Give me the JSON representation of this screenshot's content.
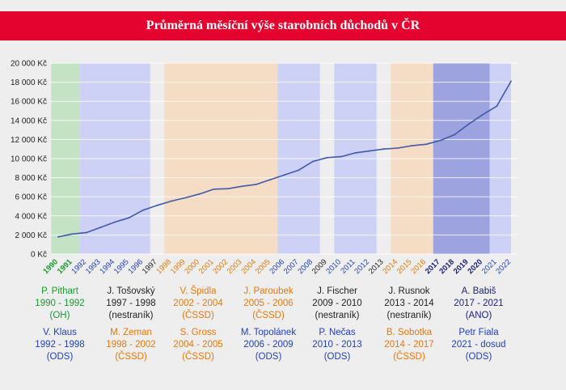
{
  "title": "Průměrná měsíční výše starobních důchodů v ČR",
  "colors": {
    "title_bg": "#e4032e",
    "line": "#3e5aa8",
    "green": "#1a9a2c",
    "black": "#222222",
    "blue": "#1f3fbf",
    "orange": "#e8780e",
    "navy": "#1b1f7a",
    "band_green": "#c4e3c4",
    "band_blue": "#cdd1f5",
    "band_orange": "#f5dcc4",
    "band_navy": "#9da3de"
  },
  "chart_data": {
    "type": "line",
    "title": "Průměrná měsíční výše starobních důchodů v ČR",
    "x": [
      1990,
      1991,
      1992,
      1993,
      1994,
      1995,
      1996,
      1997,
      1998,
      1999,
      2000,
      2001,
      2002,
      2003,
      2004,
      2005,
      2006,
      2007,
      2008,
      2009,
      2010,
      2011,
      2012,
      2013,
      2014,
      2015,
      2016,
      2017,
      2018,
      2019,
      2020,
      2021,
      2022
    ],
    "series": [
      {
        "values": [
          1800,
          2100,
          2250,
          2800,
          3350,
          3800,
          4600,
          5100,
          5550,
          5900,
          6300,
          6800,
          6850,
          7100,
          7300,
          7800,
          8300,
          8800,
          9700,
          10100,
          10200,
          10600,
          10800,
          11000,
          11100,
          11350,
          11500,
          11900,
          12500,
          13600,
          14600,
          15500,
          18100
        ]
      }
    ],
    "yticks": [
      "0 Kč",
      "2 000 Kč",
      "4 000 Kč",
      "6 000 Kč",
      "8 000 Kč",
      "10 000 Kč",
      "12 000 Kč",
      "14 000 Kč",
      "16 000 Kč",
      "18 000 Kč",
      "20 000 Kč"
    ],
    "ylim": [
      0,
      20000
    ],
    "xlabels": [
      {
        "label": "1990",
        "color": "green",
        "bold": true
      },
      {
        "label": "1991",
        "color": "green",
        "bold": true
      },
      {
        "label": "1992",
        "color": "blue",
        "bold": false
      },
      {
        "label": "1993",
        "color": "blue",
        "bold": false
      },
      {
        "label": "1994",
        "color": "blue",
        "bold": false
      },
      {
        "label": "1995",
        "color": "blue",
        "bold": false
      },
      {
        "label": "1996",
        "color": "blue",
        "bold": false
      },
      {
        "label": "1997",
        "color": "black",
        "bold": false
      },
      {
        "label": "1998",
        "color": "orange",
        "bold": false
      },
      {
        "label": "1999",
        "color": "orange",
        "bold": false
      },
      {
        "label": "2000",
        "color": "orange",
        "bold": false
      },
      {
        "label": "2001",
        "color": "orange",
        "bold": false
      },
      {
        "label": "2002",
        "color": "orange",
        "bold": false
      },
      {
        "label": "2003",
        "color": "orange",
        "bold": false
      },
      {
        "label": "2004",
        "color": "orange",
        "bold": false
      },
      {
        "label": "2005",
        "color": "orange",
        "bold": false
      },
      {
        "label": "2006",
        "color": "blue",
        "bold": false
      },
      {
        "label": "2007",
        "color": "blue",
        "bold": false
      },
      {
        "label": "2008",
        "color": "blue",
        "bold": false
      },
      {
        "label": "2009",
        "color": "black",
        "bold": false
      },
      {
        "label": "2010",
        "color": "blue",
        "bold": false
      },
      {
        "label": "2011",
        "color": "blue",
        "bold": false
      },
      {
        "label": "2012",
        "color": "blue",
        "bold": false
      },
      {
        "label": "2013",
        "color": "black",
        "bold": false
      },
      {
        "label": "2014",
        "color": "orange",
        "bold": false
      },
      {
        "label": "2015",
        "color": "orange",
        "bold": false
      },
      {
        "label": "2016",
        "color": "orange",
        "bold": false
      },
      {
        "label": "2017",
        "color": "navy",
        "bold": true
      },
      {
        "label": "2018",
        "color": "navy",
        "bold": true
      },
      {
        "label": "2019",
        "color": "navy",
        "bold": true
      },
      {
        "label": "2020",
        "color": "navy",
        "bold": true
      },
      {
        "label": "2021",
        "color": "blue",
        "bold": false
      },
      {
        "label": "2022",
        "color": "blue",
        "bold": false
      }
    ],
    "bands": [
      {
        "from": 1990,
        "to": 1992,
        "color": "band_green"
      },
      {
        "from": 1992,
        "to": 1997,
        "color": "band_blue"
      },
      {
        "from": 1998,
        "to": 2006,
        "color": "band_orange"
      },
      {
        "from": 2006,
        "to": 2009,
        "color": "band_blue"
      },
      {
        "from": 2010,
        "to": 2013,
        "color": "band_blue"
      },
      {
        "from": 2014,
        "to": 2017,
        "color": "band_orange"
      },
      {
        "from": 2017,
        "to": 2021,
        "color": "band_navy"
      },
      {
        "from": 2021,
        "to": 2022.5,
        "color": "band_blue"
      }
    ]
  },
  "prime_ministers": {
    "row1": [
      {
        "name": "P. Pithart",
        "term": "1990 - 1992",
        "party": "(OH)",
        "color": "green"
      },
      {
        "name": "J. Tošovský",
        "term": "1997 - 1998",
        "party": "(nestraník)",
        "color": "black"
      },
      {
        "name": "V. Špidla",
        "term": "2002 - 2004",
        "party": "(ČSSD)",
        "color": "orange"
      },
      {
        "name": "J. Paroubek",
        "term": "2005 - 2006",
        "party": "(ČSSD)",
        "color": "orange"
      },
      {
        "name": "J. Fischer",
        "term": "2009 - 2010",
        "party": "(nestraník)",
        "color": "black"
      },
      {
        "name": "J. Rusnok",
        "term": "2013 - 2014",
        "party": "(nestraník)",
        "color": "black"
      },
      {
        "name": "A. Babiš",
        "term": "2017 - 2021",
        "party": "(ANO)",
        "color": "navy"
      }
    ],
    "row2": [
      {
        "name": "V. Klaus",
        "term": "1992 - 1998",
        "party": "(ODS)",
        "color": "blue"
      },
      {
        "name": "M. Zeman",
        "term": "1998 - 2002",
        "party": "(ČSSD)",
        "color": "orange"
      },
      {
        "name": "S. Gross",
        "term": "2004 - 2005",
        "party": "(ČSSD)",
        "color": "orange"
      },
      {
        "name": "M. Topolánek",
        "term": "2006 - 2009",
        "party": "(ODS)",
        "color": "blue"
      },
      {
        "name": "P. Nečas",
        "term": "2010 - 2013",
        "party": "(ODS)",
        "color": "blue"
      },
      {
        "name": "B. Sobotka",
        "term": "2014 - 2017",
        "party": "(ČSSD)",
        "color": "orange"
      },
      {
        "name": "Petr Fiala",
        "term": "2021 - dosud",
        "party": "(ODS)",
        "color": "blue"
      }
    ]
  }
}
